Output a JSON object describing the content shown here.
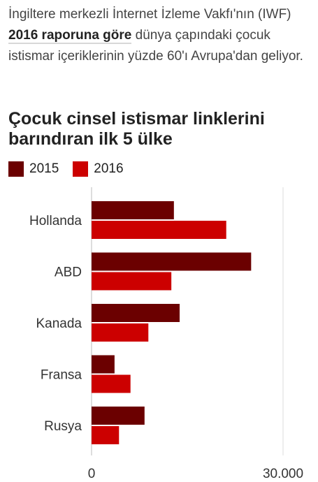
{
  "intro": {
    "before": "İngiltere merkezli İnternet İzleme Vakfı'nın (IWF) ",
    "link": "2016 raporuna göre",
    "after": " dünya çapındaki çocuk istismar içeriklerinin yüzde 60'ı Avrupa'dan geliyor."
  },
  "chart_data": {
    "type": "bar",
    "orientation": "horizontal",
    "title": "Çocuk cinsel istismar linklerini barındıran ilk 5 ülke",
    "categories": [
      "Hollanda",
      "ABD",
      "Kanada",
      "Fransa",
      "Rusya"
    ],
    "series": [
      {
        "name": "2015",
        "color": "#6b0000",
        "values": [
          12900,
          25000,
          13800,
          3600,
          8300
        ]
      },
      {
        "name": "2016",
        "color": "#cc0000",
        "values": [
          21100,
          12500,
          8900,
          6100,
          4300
        ]
      }
    ],
    "x_ticks": [
      0,
      30000
    ],
    "x_tick_labels": [
      "0",
      "30.000"
    ],
    "xlim": [
      0,
      30000
    ],
    "grid": true,
    "legend_position": "top-left"
  }
}
